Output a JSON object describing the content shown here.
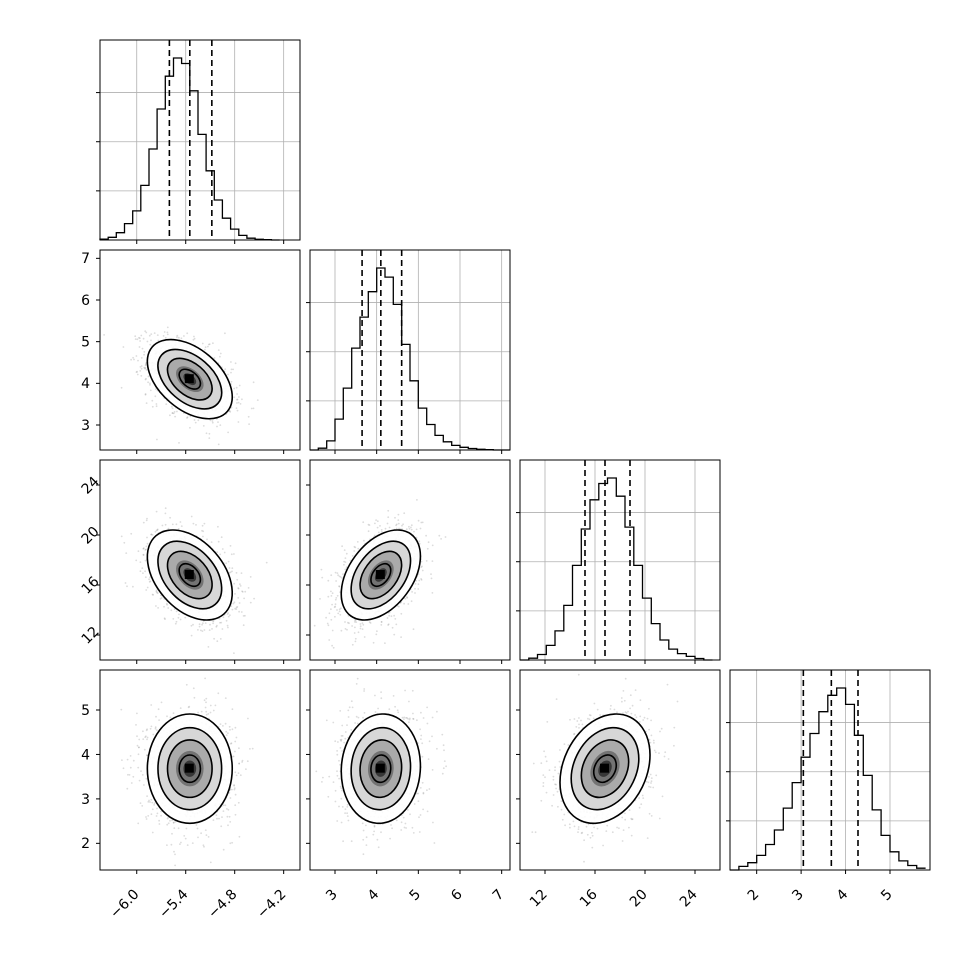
{
  "chart_data": {
    "type": "corner",
    "grid": true,
    "n_params": 4,
    "params": [
      {
        "median": -5.35,
        "q16": -5.6,
        "q84": -5.08,
        "range": [
          -6.45,
          -4.0
        ],
        "ticks": [
          -6.0,
          -5.4,
          -4.8,
          -4.2
        ],
        "tick_labels": [
          "−6.0",
          "−5.4",
          "−4.8",
          "−4.2"
        ],
        "hist_bins": [
          -6.45,
          -6.35,
          -6.25,
          -6.15,
          -6.05,
          -5.95,
          -5.85,
          -5.75,
          -5.65,
          -5.55,
          -5.45,
          -5.35,
          -5.25,
          -5.15,
          -5.05,
          -4.95,
          -4.85,
          -4.75,
          -4.65,
          -4.55,
          -4.45,
          -4.35,
          -4.25
        ],
        "hist_counts": [
          0.005,
          0.015,
          0.04,
          0.09,
          0.16,
          0.3,
          0.5,
          0.72,
          0.9,
          1.0,
          0.97,
          0.82,
          0.58,
          0.38,
          0.22,
          0.12,
          0.06,
          0.025,
          0.01,
          0.004,
          0.002,
          0.0
        ]
      },
      {
        "median": 4.1,
        "q16": 3.65,
        "q84": 4.6,
        "range": [
          2.4,
          7.2
        ],
        "ticks": [
          3,
          4,
          5,
          6,
          7
        ],
        "tick_labels": [
          "3",
          "4",
          "5",
          "6",
          "7"
        ],
        "hist_bins": [
          2.4,
          2.6,
          2.8,
          3.0,
          3.2,
          3.4,
          3.6,
          3.8,
          4.0,
          4.2,
          4.4,
          4.6,
          4.8,
          5.0,
          5.2,
          5.4,
          5.6,
          5.8,
          6.0,
          6.2,
          6.4,
          6.6,
          6.8,
          7.0,
          7.2
        ],
        "hist_counts": [
          0.0,
          0.01,
          0.05,
          0.17,
          0.34,
          0.56,
          0.73,
          0.87,
          1.0,
          0.95,
          0.8,
          0.58,
          0.38,
          0.23,
          0.14,
          0.08,
          0.045,
          0.025,
          0.015,
          0.008,
          0.004,
          0.002,
          0.0,
          0.0
        ]
      },
      {
        "median": 16.8,
        "q16": 15.2,
        "q84": 18.8,
        "range": [
          10.0,
          26.0
        ],
        "ticks": [
          12,
          16,
          20,
          24
        ],
        "tick_labels": [
          "12",
          "16",
          "20",
          "24"
        ],
        "hist_bins": [
          10.0,
          10.7,
          11.4,
          12.1,
          12.8,
          13.5,
          14.2,
          14.9,
          15.6,
          16.3,
          17.0,
          17.7,
          18.4,
          19.1,
          19.8,
          20.5,
          21.2,
          21.9,
          22.6,
          23.3,
          24.0,
          24.7,
          25.4
        ],
        "hist_counts": [
          0.0,
          0.01,
          0.03,
          0.08,
          0.16,
          0.3,
          0.52,
          0.72,
          0.88,
          0.97,
          1.0,
          0.9,
          0.73,
          0.52,
          0.34,
          0.2,
          0.11,
          0.06,
          0.035,
          0.02,
          0.008,
          0.0
        ]
      },
      {
        "median": 3.68,
        "q16": 3.05,
        "q84": 4.28,
        "range": [
          1.4,
          5.9
        ],
        "ticks": [
          2,
          3,
          4,
          5
        ],
        "tick_labels": [
          "2",
          "3",
          "4",
          "5"
        ],
        "hist_bins": [
          1.4,
          1.6,
          1.8,
          2.0,
          2.2,
          2.4,
          2.6,
          2.8,
          3.0,
          3.2,
          3.4,
          3.6,
          3.8,
          4.0,
          4.2,
          4.4,
          4.6,
          4.8,
          5.0,
          5.2,
          5.4,
          5.6,
          5.8
        ],
        "hist_counts": [
          0.0,
          0.02,
          0.04,
          0.08,
          0.14,
          0.22,
          0.34,
          0.48,
          0.62,
          0.75,
          0.87,
          0.96,
          1.0,
          0.91,
          0.74,
          0.52,
          0.33,
          0.19,
          0.1,
          0.05,
          0.025,
          0.01
        ]
      }
    ],
    "correlations": [
      {
        "row": 1,
        "col": 0,
        "rho": -0.45
      },
      {
        "row": 2,
        "col": 0,
        "rho": -0.4
      },
      {
        "row": 2,
        "col": 1,
        "rho": 0.42
      },
      {
        "row": 3,
        "col": 0,
        "rho": 0.0
      },
      {
        "row": 3,
        "col": 1,
        "rho": 0.05
      },
      {
        "row": 3,
        "col": 2,
        "rho": 0.25
      }
    ],
    "colors": {
      "line": "#000000",
      "grid": "#b0b0b0",
      "points": "#808080"
    }
  }
}
